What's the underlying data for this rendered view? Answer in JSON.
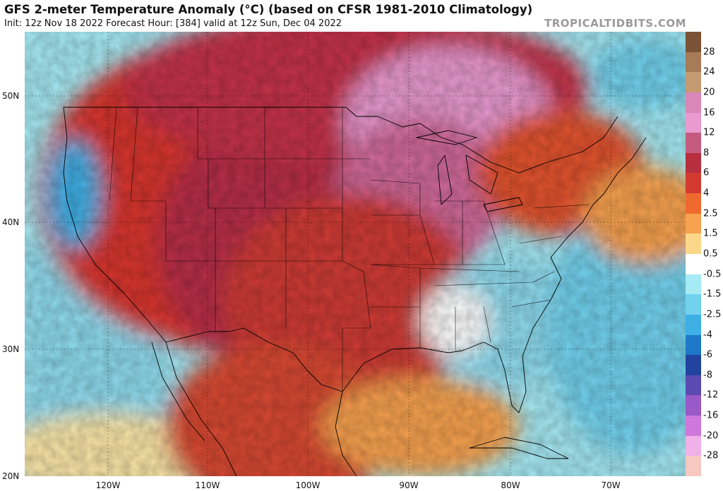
{
  "header": {
    "title": "GFS 2-meter Temperature Anomaly (°C) (based on CFSR 1981-2010 Climatology)",
    "subtitle": "Init: 12z Nov 18 2022   Forecast Hour: [384]   valid at 12z Sun, Dec 04 2022",
    "credit": "TROPICALTIDBITS.COM"
  },
  "axes": {
    "lat_labels": [
      "50N",
      "40N",
      "30N",
      "20N"
    ],
    "lat_values": [
      50,
      40,
      30,
      20
    ],
    "lon_labels": [
      "120W",
      "110W",
      "100W",
      "90W",
      "80W",
      "70W"
    ],
    "lon_values": [
      -120,
      -110,
      -100,
      -90,
      -80,
      -70
    ],
    "lon_range": [
      -128,
      -63
    ],
    "lat_range": [
      20,
      55
    ]
  },
  "colorbar": {
    "labels": [
      "28",
      "24",
      "20",
      "16",
      "12",
      "8",
      "6",
      "4",
      "2.5",
      "1.5",
      "0.5",
      "-0.5",
      "-1.5",
      "-2.5",
      "-4",
      "-6",
      "-8",
      "-12",
      "-16",
      "-20",
      "-28"
    ],
    "colors": [
      "#7a5236",
      "#a67b56",
      "#c49a73",
      "#d987b8",
      "#e99bd0",
      "#c45b7e",
      "#b72f3f",
      "#d23a30",
      "#ef6a2e",
      "#f7a24f",
      "#fbd889",
      "#ffffff",
      "#a6eaf4",
      "#72d2ee",
      "#3fb0e6",
      "#1f78c8",
      "#2244a0",
      "#5b4bb0",
      "#9959c6",
      "#cf78dc",
      "#f0b0e8",
      "#f6c8c0"
    ]
  }
}
